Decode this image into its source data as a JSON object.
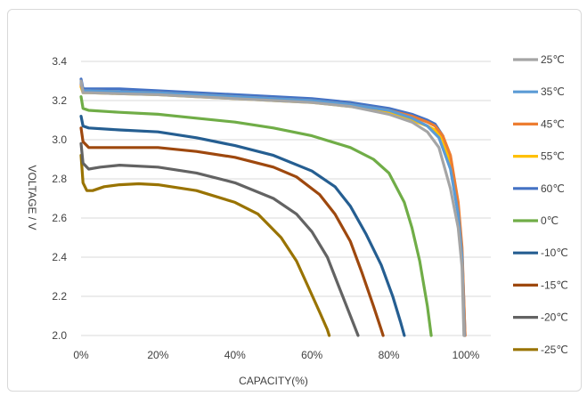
{
  "chart_data": {
    "type": "line",
    "title": "",
    "xlabel": "CAPACITY(%)",
    "ylabel": "VOLTAGE / V",
    "xlim": [
      0,
      100
    ],
    "ylim": [
      2.0,
      3.4
    ],
    "x_ticks": [
      "0%",
      "20%",
      "40%",
      "60%",
      "80%",
      "100%"
    ],
    "y_ticks": [
      "2.0",
      "2.2",
      "2.4",
      "2.6",
      "2.8",
      "3.0",
      "3.2",
      "3.4"
    ],
    "grid": "horizontal",
    "legend": "right",
    "series": [
      {
        "name": "25℃",
        "color": "#a5a5a5",
        "points": [
          [
            0,
            3.3
          ],
          [
            0.5,
            3.24
          ],
          [
            2,
            3.24
          ],
          [
            10,
            3.235
          ],
          [
            20,
            3.23
          ],
          [
            30,
            3.22
          ],
          [
            40,
            3.21
          ],
          [
            50,
            3.2
          ],
          [
            60,
            3.19
          ],
          [
            70,
            3.17
          ],
          [
            80,
            3.13
          ],
          [
            86,
            3.09
          ],
          [
            90,
            3.04
          ],
          [
            93,
            2.96
          ],
          [
            96,
            2.75
          ],
          [
            98,
            2.55
          ],
          [
            99,
            2.35
          ],
          [
            99.5,
            2.0
          ]
        ]
      },
      {
        "name": "35℃",
        "color": "#5b9bd5",
        "points": [
          [
            0,
            3.29
          ],
          [
            0.5,
            3.25
          ],
          [
            2,
            3.25
          ],
          [
            10,
            3.245
          ],
          [
            20,
            3.24
          ],
          [
            30,
            3.23
          ],
          [
            40,
            3.22
          ],
          [
            50,
            3.21
          ],
          [
            60,
            3.2
          ],
          [
            70,
            3.18
          ],
          [
            80,
            3.15
          ],
          [
            86,
            3.11
          ],
          [
            90,
            3.07
          ],
          [
            93,
            3.01
          ],
          [
            96,
            2.85
          ],
          [
            98,
            2.62
          ],
          [
            99,
            2.4
          ],
          [
            99.6,
            2.0
          ]
        ]
      },
      {
        "name": "45℃",
        "color": "#ed7d31",
        "points": [
          [
            0,
            3.28
          ],
          [
            0.5,
            3.25
          ],
          [
            2,
            3.25
          ],
          [
            10,
            3.245
          ],
          [
            20,
            3.24
          ],
          [
            30,
            3.23
          ],
          [
            40,
            3.22
          ],
          [
            50,
            3.21
          ],
          [
            60,
            3.2
          ],
          [
            70,
            3.18
          ],
          [
            80,
            3.15
          ],
          [
            86,
            3.12
          ],
          [
            90,
            3.09
          ],
          [
            92,
            3.07
          ],
          [
            94,
            3.02
          ],
          [
            96,
            2.92
          ],
          [
            98,
            2.68
          ],
          [
            99,
            2.45
          ],
          [
            99.8,
            2.0
          ]
        ]
      },
      {
        "name": "55℃",
        "color": "#ffc000",
        "points": [
          [
            0,
            3.27
          ],
          [
            0.5,
            3.24
          ],
          [
            2,
            3.24
          ],
          [
            10,
            3.235
          ],
          [
            20,
            3.23
          ],
          [
            30,
            3.22
          ],
          [
            40,
            3.21
          ],
          [
            50,
            3.2
          ],
          [
            60,
            3.19
          ],
          [
            70,
            3.17
          ],
          [
            80,
            3.14
          ],
          [
            86,
            3.1
          ],
          [
            90,
            3.07
          ],
          [
            92,
            3.05
          ],
          [
            94,
            3.0
          ],
          [
            96,
            2.88
          ],
          [
            98,
            2.64
          ],
          [
            99,
            2.42
          ],
          [
            99.7,
            2.0
          ]
        ]
      },
      {
        "name": "60℃",
        "color": "#4472c4",
        "points": [
          [
            0,
            3.31
          ],
          [
            0.5,
            3.26
          ],
          [
            2,
            3.26
          ],
          [
            10,
            3.26
          ],
          [
            20,
            3.25
          ],
          [
            30,
            3.24
          ],
          [
            40,
            3.23
          ],
          [
            50,
            3.22
          ],
          [
            60,
            3.21
          ],
          [
            70,
            3.19
          ],
          [
            80,
            3.16
          ],
          [
            86,
            3.13
          ],
          [
            90,
            3.1
          ],
          [
            92,
            3.08
          ],
          [
            94,
            3.02
          ],
          [
            96,
            2.9
          ],
          [
            98,
            2.66
          ],
          [
            99,
            2.42
          ],
          [
            99.8,
            2.0
          ]
        ]
      },
      {
        "name": "0℃",
        "color": "#70ad47",
        "points": [
          [
            0,
            3.22
          ],
          [
            0.5,
            3.16
          ],
          [
            2,
            3.15
          ],
          [
            10,
            3.14
          ],
          [
            20,
            3.13
          ],
          [
            30,
            3.11
          ],
          [
            40,
            3.09
          ],
          [
            50,
            3.06
          ],
          [
            60,
            3.02
          ],
          [
            70,
            2.96
          ],
          [
            76,
            2.9
          ],
          [
            80,
            2.83
          ],
          [
            84,
            2.68
          ],
          [
            86,
            2.55
          ],
          [
            88,
            2.38
          ],
          [
            90,
            2.15
          ],
          [
            91,
            2.0
          ]
        ]
      },
      {
        "name": "-10℃",
        "color": "#255e91",
        "points": [
          [
            0,
            3.12
          ],
          [
            0.5,
            3.07
          ],
          [
            2,
            3.06
          ],
          [
            10,
            3.05
          ],
          [
            20,
            3.04
          ],
          [
            30,
            3.01
          ],
          [
            40,
            2.97
          ],
          [
            50,
            2.92
          ],
          [
            60,
            2.84
          ],
          [
            66,
            2.76
          ],
          [
            70,
            2.66
          ],
          [
            74,
            2.52
          ],
          [
            78,
            2.36
          ],
          [
            81,
            2.2
          ],
          [
            83,
            2.07
          ],
          [
            84,
            2.0
          ]
        ]
      },
      {
        "name": "-15℃",
        "color": "#9e480e",
        "points": [
          [
            0,
            3.06
          ],
          [
            0.5,
            2.99
          ],
          [
            2,
            2.96
          ],
          [
            10,
            2.96
          ],
          [
            20,
            2.96
          ],
          [
            30,
            2.94
          ],
          [
            40,
            2.91
          ],
          [
            50,
            2.86
          ],
          [
            56,
            2.81
          ],
          [
            62,
            2.72
          ],
          [
            66,
            2.62
          ],
          [
            70,
            2.48
          ],
          [
            73,
            2.32
          ],
          [
            76,
            2.15
          ],
          [
            78,
            2.03
          ],
          [
            78.5,
            2.0
          ]
        ]
      },
      {
        "name": "-20℃",
        "color": "#636363",
        "points": [
          [
            0,
            2.98
          ],
          [
            0.5,
            2.88
          ],
          [
            2,
            2.85
          ],
          [
            5,
            2.86
          ],
          [
            10,
            2.87
          ],
          [
            20,
            2.86
          ],
          [
            30,
            2.83
          ],
          [
            40,
            2.78
          ],
          [
            50,
            2.7
          ],
          [
            56,
            2.62
          ],
          [
            60,
            2.53
          ],
          [
            64,
            2.4
          ],
          [
            67,
            2.25
          ],
          [
            70,
            2.1
          ],
          [
            72,
            2.0
          ]
        ]
      },
      {
        "name": "-25℃",
        "color": "#997300",
        "points": [
          [
            0,
            2.92
          ],
          [
            0.5,
            2.78
          ],
          [
            1.5,
            2.74
          ],
          [
            3,
            2.74
          ],
          [
            6,
            2.76
          ],
          [
            10,
            2.77
          ],
          [
            15,
            2.775
          ],
          [
            20,
            2.77
          ],
          [
            30,
            2.74
          ],
          [
            40,
            2.68
          ],
          [
            46,
            2.62
          ],
          [
            52,
            2.5
          ],
          [
            56,
            2.38
          ],
          [
            59,
            2.25
          ],
          [
            62,
            2.12
          ],
          [
            64,
            2.03
          ],
          [
            64.5,
            2.0
          ]
        ]
      }
    ]
  }
}
